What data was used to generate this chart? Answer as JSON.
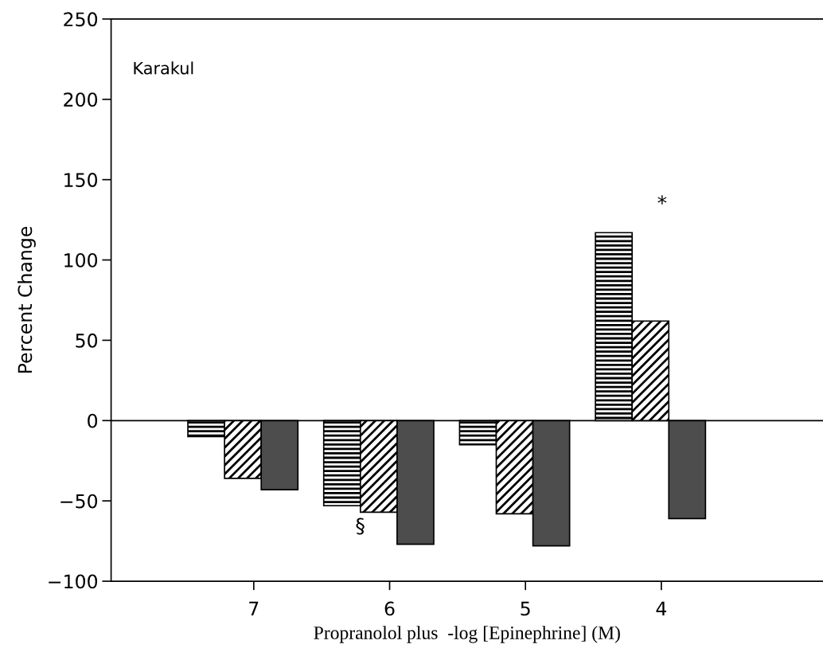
{
  "chart_data": {
    "type": "bar",
    "xlabel": "Propranolol plus  -log [Epinephrine] (M)",
    "ylabel": "Percent Change",
    "categories": [
      "7",
      "6",
      "5",
      "4"
    ],
    "series": [
      {
        "color": "#000000",
        "values": [
          -10,
          -53,
          -15,
          117
        ]
      },
      {
        "color": "#000000",
        "values": [
          -36,
          -57,
          -58,
          62
        ]
      },
      {
        "color": "#4d4d4d",
        "values": [
          -43,
          -77,
          -78,
          -61
        ]
      }
    ],
    "ylim": [
      -100,
      250
    ],
    "yticks": [
      {
        "value": -100,
        "label": "−100"
      },
      {
        "value": -50,
        "label": "−50"
      },
      0,
      50,
      100,
      150,
      200,
      250
    ],
    "ref_lines": [
      {
        "axis": "y",
        "value": 0,
        "color": "#000000"
      }
    ],
    "annotations": [
      "Karakul",
      "*",
      "§"
    ],
    "grid": false,
    "legend": false
  }
}
